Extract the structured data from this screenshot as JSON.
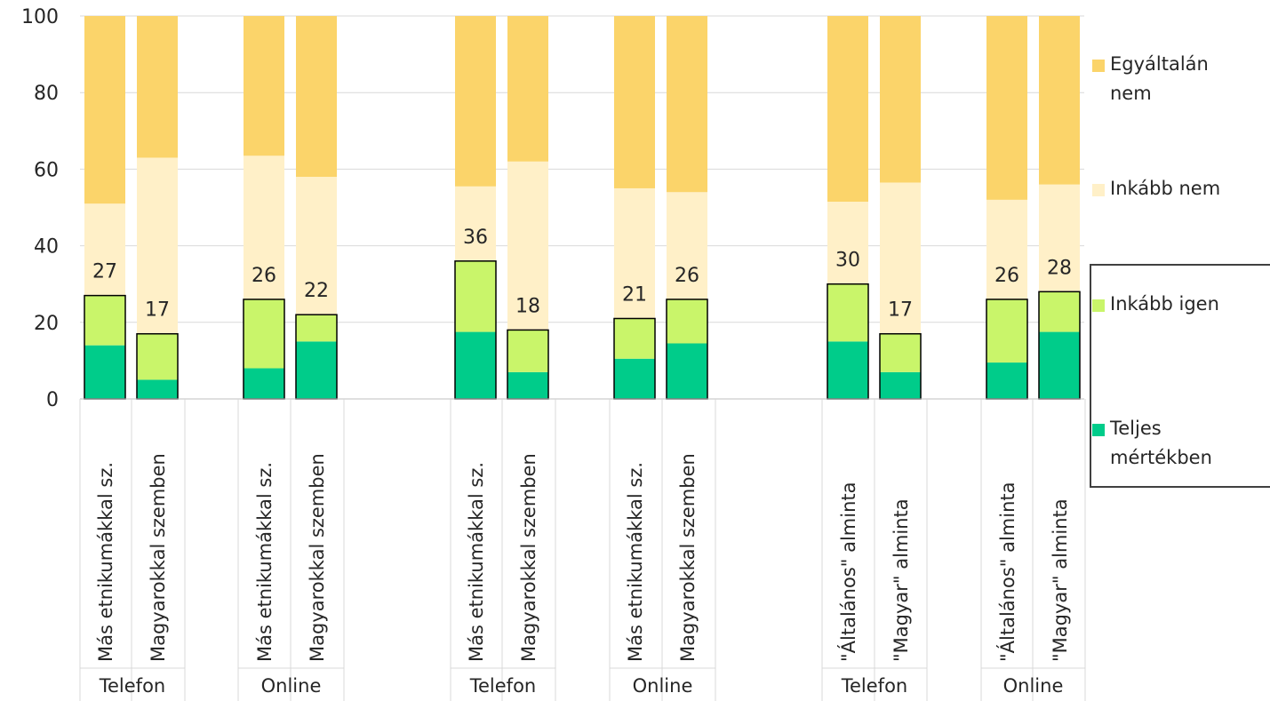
{
  "chart_data": {
    "type": "bar",
    "stacked": true,
    "ylim": [
      0,
      100
    ],
    "yticks": [
      "0",
      "20",
      "40",
      "60",
      "80",
      "100"
    ],
    "grid": true,
    "legend_position": "right",
    "categories": [
      {
        "label": "Más etnikumákkal sz.",
        "group": "Telefon",
        "block": 1
      },
      {
        "label": "Magyarokkal szemben",
        "group": "Telefon",
        "block": 1
      },
      {
        "label": "Más etnikumákkal sz.",
        "group": "Online",
        "block": 1
      },
      {
        "label": "Magyarokkal szemben",
        "group": "Online",
        "block": 1
      },
      {
        "label": "Más etnikumákkal sz.",
        "group": "Telefon",
        "block": 2
      },
      {
        "label": "Magyarokkal szemben",
        "group": "Telefon",
        "block": 2
      },
      {
        "label": "Más etnikumákkal sz.",
        "group": "Online",
        "block": 2
      },
      {
        "label": "Magyarokkal szemben",
        "group": "Online",
        "block": 2
      },
      {
        "label": "\"Általános\" alminta",
        "group": "Telefon",
        "block": 3
      },
      {
        "label": "\"Magyar\" alminta",
        "group": "Telefon",
        "block": 3
      },
      {
        "label": "\"Általános\" alminta",
        "group": "Online",
        "block": 3
      },
      {
        "label": "\"Magyar\" alminta",
        "group": "Online",
        "block": 3
      }
    ],
    "series": [
      {
        "name": "Teljes mértékben",
        "color": "#00cc8a",
        "values": [
          14,
          5,
          8,
          15,
          17.5,
          7,
          10.5,
          14.5,
          15,
          7,
          9.5,
          17.5
        ]
      },
      {
        "name": "Inkább igen",
        "color": "#c9f56a",
        "values": [
          13,
          12,
          18,
          7,
          18.5,
          11,
          10.5,
          11.5,
          15,
          10,
          16.5,
          10.5
        ]
      },
      {
        "name": "Inkább nem",
        "color": "#fff0c8",
        "values": [
          24,
          46,
          37.5,
          36,
          19.5,
          44,
          34,
          28,
          21.5,
          39.5,
          26,
          28
        ]
      },
      {
        "name": "Egyáltalán nem",
        "color": "#fbd46a",
        "values": [
          49,
          37,
          36.5,
          42,
          44.5,
          38,
          45,
          46,
          48.5,
          43.5,
          48,
          44
        ]
      }
    ],
    "data_labels": [
      "27",
      "17",
      "26",
      "22",
      "36",
      "18",
      "21",
      "26",
      "30",
      "17",
      "26",
      "28"
    ],
    "group_labels": [
      "Telefon",
      "Online",
      "Telefon",
      "Online",
      "Telefon",
      "Online"
    ],
    "legend": [
      {
        "label_line1": "Egyáltalán",
        "label_line2": "nem",
        "color": "#fbd46a"
      },
      {
        "label_line1": "Inkább nem",
        "label_line2": "",
        "color": "#fff0c8"
      },
      {
        "label_line1": "Inkább igen",
        "label_line2": "",
        "color": "#c9f56a"
      },
      {
        "label_line1": "Teljes",
        "label_line2": "mértékben",
        "color": "#00cc8a"
      }
    ]
  }
}
